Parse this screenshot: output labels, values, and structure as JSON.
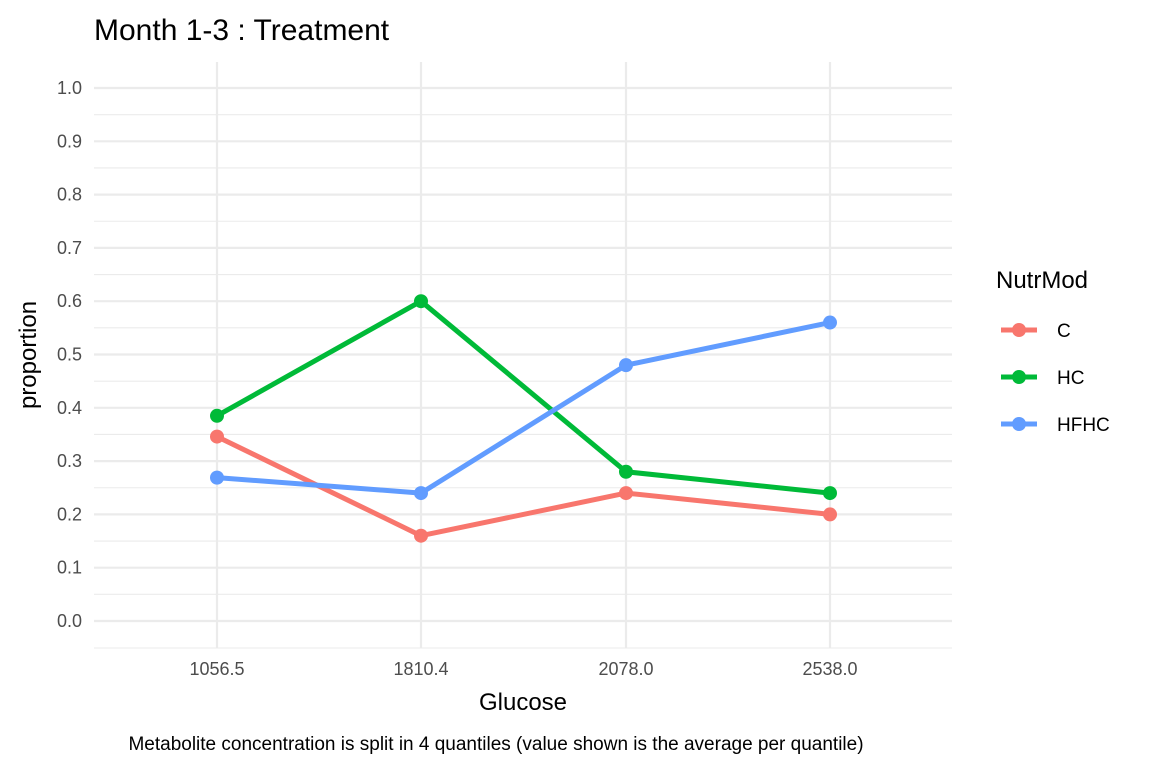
{
  "chart_data": {
    "type": "line",
    "title": "Month 1-3 : Treatment",
    "xlabel": "Glucose",
    "ylabel": "proportion",
    "caption": "Metabolite concentration is split in 4 quantiles (value shown is the average per quantile)",
    "categories": [
      "1056.5",
      "1810.4",
      "2078.0",
      "2538.0"
    ],
    "ylim": [
      0.0,
      1.0
    ],
    "yticks": [
      "0.0",
      "0.1",
      "0.2",
      "0.3",
      "0.4",
      "0.5",
      "0.6",
      "0.7",
      "0.8",
      "0.9",
      "1.0"
    ],
    "grid": true,
    "legend": {
      "title": "NutrMod",
      "position": "right"
    },
    "series": [
      {
        "name": "C",
        "color": "#F8766D",
        "values": [
          0.346,
          0.16,
          0.24,
          0.2
        ]
      },
      {
        "name": "HC",
        "color": "#00BA38",
        "values": [
          0.385,
          0.6,
          0.28,
          0.24
        ]
      },
      {
        "name": "HFHC",
        "color": "#619CFF",
        "values": [
          0.269,
          0.24,
          0.48,
          0.56
        ]
      }
    ]
  }
}
